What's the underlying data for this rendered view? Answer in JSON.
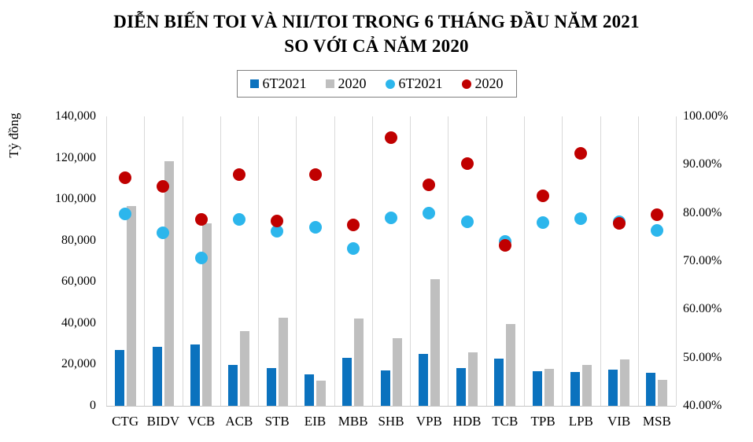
{
  "chart_data": {
    "type": "combo",
    "title": {
      "line1": "DIỄN BIẾN TOI VÀ NII/TOI TRONG 6 THÁNG ĐẦU NĂM 2021",
      "line2": "SO VỚI CẢ NĂM 2020"
    },
    "left_axis": {
      "label": "Tỷ đồng",
      "min": 0,
      "max": 140000,
      "tick_values": [
        0,
        20000,
        40000,
        60000,
        80000,
        100000,
        120000,
        140000
      ],
      "tick_labels": [
        "0",
        "20,000",
        "40,000",
        "60,000",
        "80,000",
        "100,000",
        "120,000",
        "140,000"
      ]
    },
    "right_axis": {
      "min": 40,
      "max": 100,
      "tick_values": [
        40,
        50,
        60,
        70,
        80,
        90,
        100
      ],
      "tick_labels": [
        "40.00%",
        "50.00%",
        "60.00%",
        "70.00%",
        "80.00%",
        "90.00%",
        "100.00%"
      ]
    },
    "categories": [
      "CTG",
      "BIDV",
      "VCB",
      "ACB",
      "STB",
      "EIB",
      "MBB",
      "SHB",
      "VPB",
      "HDB",
      "TCB",
      "TPB",
      "LPB",
      "VIB",
      "MSB"
    ],
    "series": [
      {
        "name": "6T2021",
        "type": "bar",
        "axis": "left",
        "color": "#0b72be",
        "values": [
          27100,
          28600,
          29600,
          19900,
          18100,
          15200,
          23200,
          17000,
          25100,
          18300,
          22800,
          16900,
          16500,
          17500,
          16100
        ]
      },
      {
        "name": "2020",
        "type": "bar",
        "axis": "left",
        "color": "#bfbfbf",
        "values": [
          96500,
          118300,
          88100,
          36100,
          42600,
          12100,
          42300,
          32600,
          61200,
          26000,
          39600,
          17900,
          19700,
          22300,
          12700
        ]
      },
      {
        "name": "6T2021",
        "type": "scatter",
        "axis": "right",
        "color": "#2cb6ec",
        "values": [
          79.8,
          75.9,
          70.6,
          78.7,
          76.2,
          77.1,
          72.6,
          79.0,
          79.9,
          78.1,
          74.1,
          78.0,
          78.8,
          78.1,
          76.3
        ]
      },
      {
        "name": "2020",
        "type": "scatter",
        "axis": "right",
        "color": "#c00000",
        "values": [
          87.3,
          85.5,
          78.7,
          88.0,
          78.4,
          87.9,
          77.5,
          95.6,
          85.9,
          90.2,
          73.2,
          83.6,
          92.4,
          77.8,
          79.6
        ]
      }
    ],
    "legend": [
      {
        "label": "6T2021",
        "marker": "square",
        "color": "#0b72be"
      },
      {
        "label": "2020",
        "marker": "square",
        "color": "#bfbfbf"
      },
      {
        "label": "6T2021",
        "marker": "circle",
        "color": "#2cb6ec"
      },
      {
        "label": "2020",
        "marker": "circle",
        "color": "#c00000"
      }
    ],
    "grid": {
      "vertical": true,
      "horizontal": false,
      "color": "#d9d9d9"
    },
    "legend_position": "top"
  }
}
